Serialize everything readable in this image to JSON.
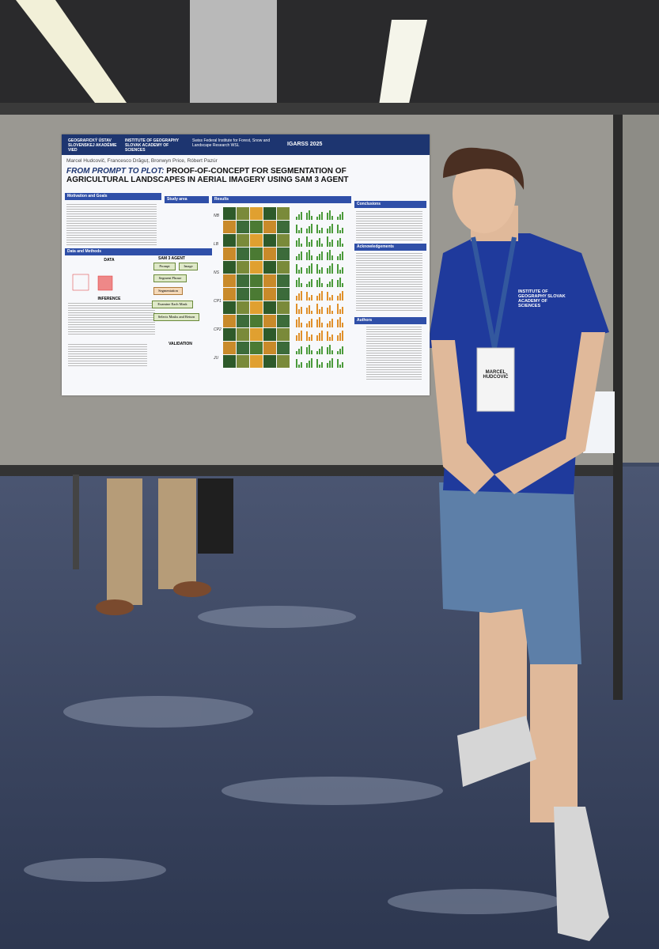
{
  "poster": {
    "logos": [
      "GEOGRAFICKÝ ÚSTAV SLOVENSKEJ AKADÉMIE VIED",
      "INSTITUTE OF GEOGRAPHY SLOVAK ACADEMY OF SCIENCES",
      "Swiss Federal Institute for Forest, Snow and Landscape Research WSL",
      "IGARSS 2025"
    ],
    "title_highlight": "FROM PROMPT TO PLOT:",
    "title_rest": "PROOF-OF-CONCEPT FOR SEGMENTATION OF AGRICULTURAL LANDSCAPES IN AERIAL IMAGERY USING SAM 3 AGENT",
    "authors": "Marcel Hudcovič, Francesco Drăguț, Bronwyn Price, Róbert Pazúr",
    "sections": [
      "Motivation and Goals",
      "Study area",
      "Results",
      "Conclusions",
      "Data and Methods",
      "Acknowledgements",
      "Authors"
    ],
    "diagram": [
      "SAM 3 AGENT",
      "Prompt",
      "Image",
      "Segment Phrase",
      "Segmentation",
      "Examine Each Mask",
      "Selects Masks and Return"
    ],
    "subheads": [
      "DATA",
      "INFERENCE",
      "VALIDATION"
    ],
    "row_labels": [
      "NB",
      "LB",
      "NS",
      "CP1",
      "CP2",
      "JU"
    ]
  },
  "badge": {
    "name": "MARCEL HUDCOVIČ"
  },
  "shirt": "INSTITUTE OF GEOGRAPHY SLOVAK ACADEMY OF SCIENCES"
}
